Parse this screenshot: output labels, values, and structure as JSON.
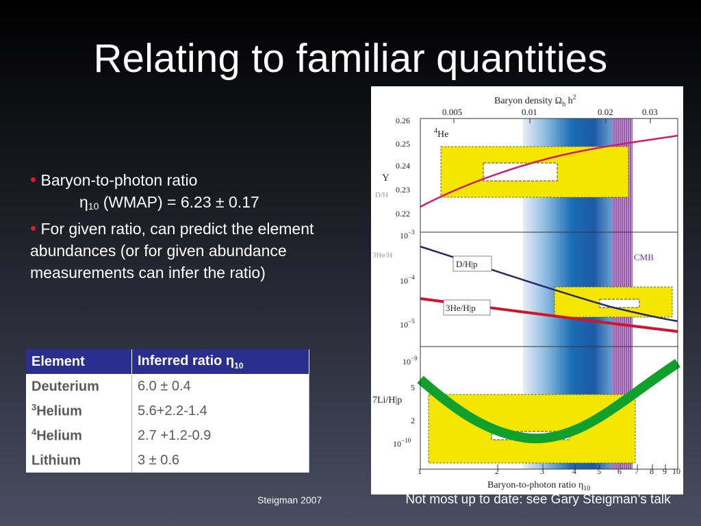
{
  "slide": {
    "title": "Relating to familiar quantities",
    "bullet1": {
      "text": "Baryon-to-photon ratio",
      "eta_symbol": "η",
      "eta_sub": "10",
      "eta_rest": " (WMAP) = 6.23 ± 0.17"
    },
    "bullet2": {
      "text": "For given ratio, can predict the element abundances (or for given abundance measurements can infer the ratio)"
    },
    "credit": "Steigman 2007",
    "note": "Not most up to date: see Gary Steigman’s talk"
  },
  "table": {
    "header_element": "Element",
    "header_ratio": "Inferred ratio η",
    "header_ratio_sub": "10",
    "rows": [
      {
        "sup": "",
        "name": "Deuterium",
        "value": "6.0 ± 0.4"
      },
      {
        "sup": "3",
        "name": "Helium",
        "value": "5.6+2.2-1.4"
      },
      {
        "sup": "4",
        "name": "Helium",
        "value": "2.7 +1.2-0.9"
      },
      {
        "sup": "",
        "name": "Lithium",
        "value": "3 ± 0.6"
      }
    ]
  },
  "figure": {
    "top_axis_label": "Baryon density Ω",
    "top_axis_sub": "b",
    "top_axis_suffix": " h",
    "top_axis_sup": "2",
    "top_ticks": [
      "0.005",
      "0.01",
      "0.02",
      "0.03"
    ],
    "bottom_axis_label": "Baryon-to-photon ratio η",
    "bottom_axis_sub": "10",
    "bottom_ticks": [
      "1",
      "2",
      "3",
      "4",
      "5",
      "6",
      "7",
      "8",
      "9",
      "10"
    ],
    "panel_he4": {
      "label_sup": "4",
      "label": "He",
      "y_label": "Y",
      "side_frac": "D/H",
      "ticks": [
        "0.26",
        "0.25",
        "0.24",
        "0.23",
        "0.22"
      ]
    },
    "panel_dhe3": {
      "side_frac": "3He/H",
      "ticks_base": [
        "10",
        "10",
        "10"
      ],
      "ticks_exp": [
        "−3",
        "−4",
        "−5"
      ],
      "label_dh": "D/H|p",
      "label_he3": "3He/H|p",
      "cmb_label": "CMB"
    },
    "panel_li7": {
      "label": "7Li/H|p",
      "ticks": [
        "10",
        "5",
        "2",
        "10"
      ],
      "ticks_exp": [
        "−9",
        "",
        "",
        "−10"
      ]
    },
    "colors": {
      "yellow_box": "#f5e600",
      "he4_curve": "#d4186c",
      "dh_curve": "#26286e",
      "he3_curve": "#d0142c",
      "li7_band": "#10a02c",
      "cmb_band": "#7b2e8e",
      "bbn_band": "#1a6cb4"
    }
  }
}
